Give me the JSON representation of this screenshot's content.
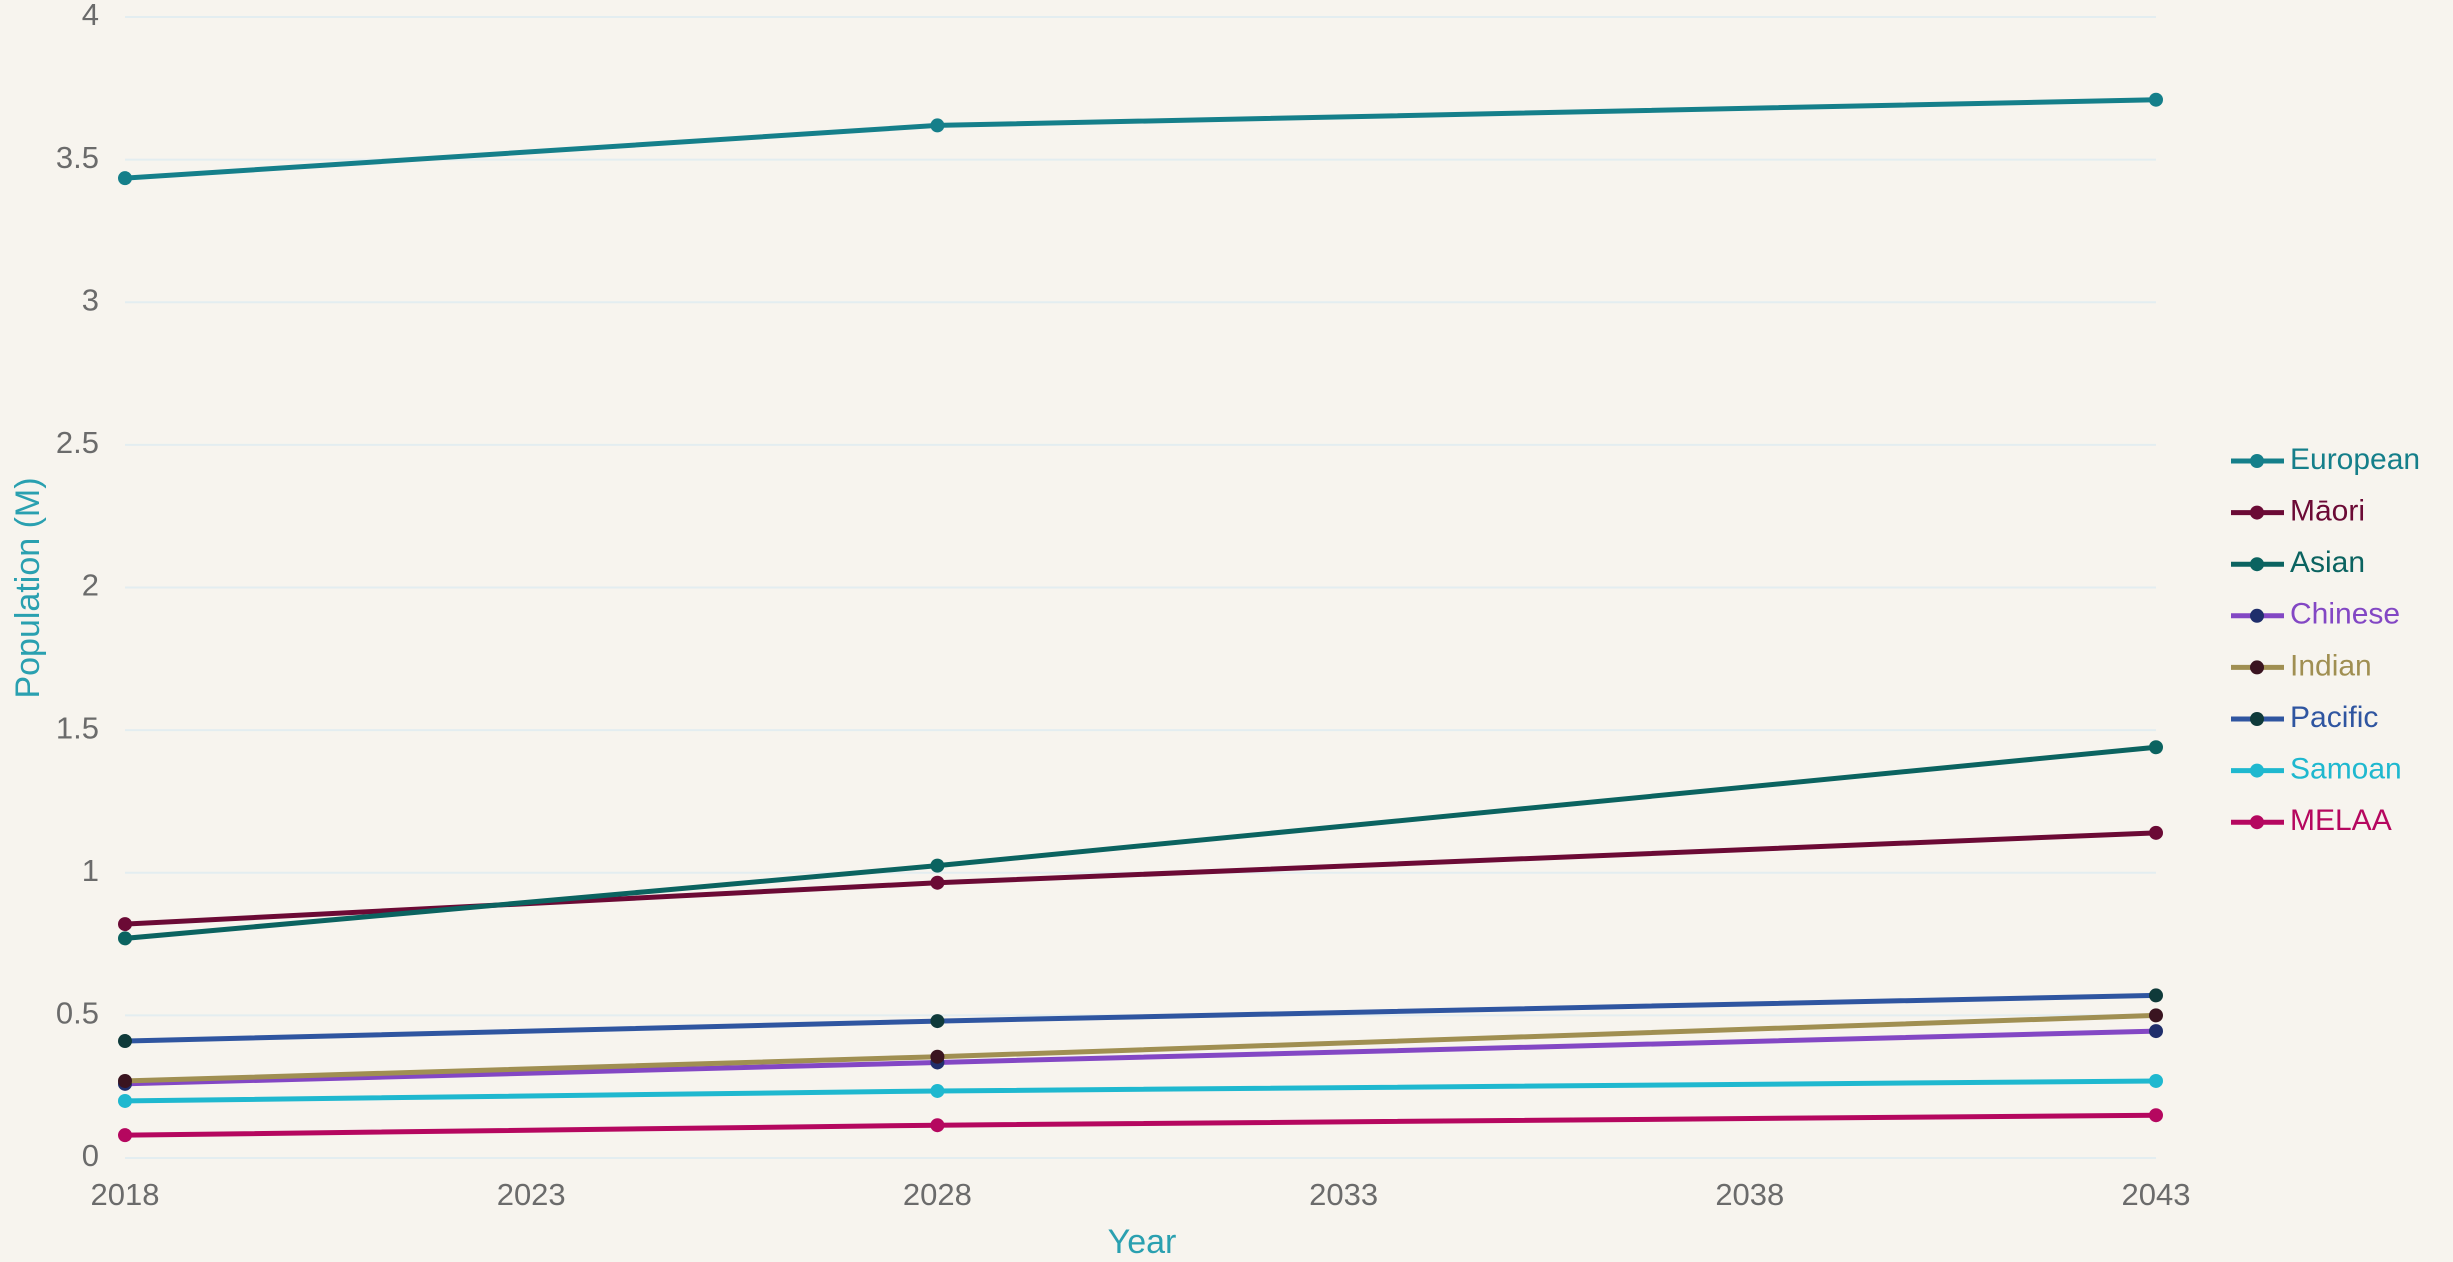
{
  "chart_data": {
    "type": "line",
    "x_label": "Year",
    "y_label": "Population (M)",
    "x": [
      2018,
      2028,
      2043
    ],
    "xlim": [
      2018,
      2043
    ],
    "xticks": [
      2018,
      2023,
      2028,
      2033,
      2038,
      2043
    ],
    "ylim": [
      0,
      4
    ],
    "yticks": [
      0,
      0.5,
      1,
      1.5,
      2,
      2.5,
      3,
      3.5,
      4
    ],
    "grid": true,
    "legend": "right",
    "series": [
      {
        "name": "European",
        "color": "#157f8a",
        "marker_color": "#157f8a",
        "values": [
          3.435,
          3.62,
          3.71
        ]
      },
      {
        "name": "Māori",
        "color": "#6b0a35",
        "marker_color": "#6b0a35",
        "values": [
          0.82,
          0.965,
          1.14
        ]
      },
      {
        "name": "Asian",
        "color": "#0b6360",
        "marker_color": "#0b6360",
        "values": [
          0.77,
          1.025,
          1.44
        ]
      },
      {
        "name": "Chinese",
        "color": "#8347c4",
        "marker_color": "#1f2e6b",
        "values": [
          0.26,
          0.335,
          0.445
        ]
      },
      {
        "name": "Indian",
        "color": "#a08f52",
        "marker_color": "#3a1420",
        "values": [
          0.27,
          0.355,
          0.5
        ]
      },
      {
        "name": "Pacific",
        "color": "#2f55a0",
        "marker_color": "#0f3a3a",
        "values": [
          0.41,
          0.48,
          0.57
        ]
      },
      {
        "name": "Samoan",
        "color": "#1fb8cf",
        "marker_color": "#1fb8cf",
        "values": [
          0.2,
          0.235,
          0.27
        ]
      },
      {
        "name": "MELAA",
        "color": "#b5075f",
        "marker_color": "#b5075f",
        "values": [
          0.08,
          0.115,
          0.15
        ]
      }
    ]
  }
}
